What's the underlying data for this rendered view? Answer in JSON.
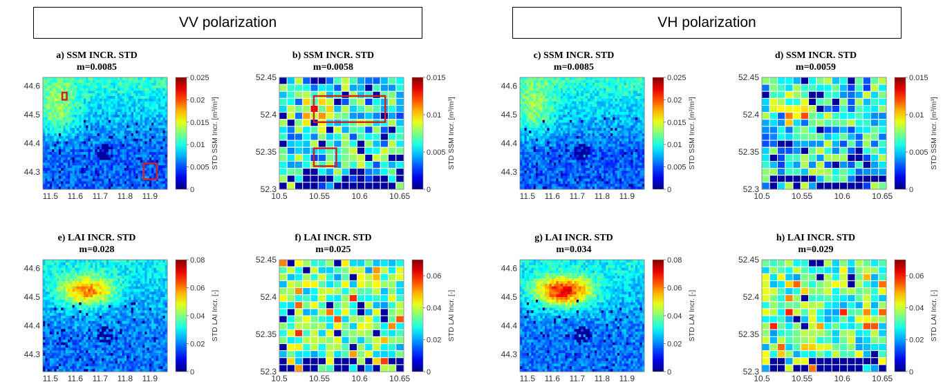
{
  "headers": {
    "vv": "VV polarization",
    "vh": "VH polarization"
  },
  "chart_data": [
    {
      "id": "a",
      "type": "heatmap",
      "title": "a) SSM INCR. STD",
      "subtitle": "m=0.0085",
      "x_ticks": [
        "11.5",
        "11.6",
        "11.7",
        "11.8",
        "11.9"
      ],
      "y_ticks": [
        "44.6",
        "44.5",
        "44.4",
        "44.3"
      ],
      "xlim": [
        11.47,
        11.97
      ],
      "ylim": [
        44.24,
        44.63
      ],
      "grid_cols": 55,
      "grid_rows": 42,
      "pattern": "ssm_it",
      "colorbar": {
        "min": 0,
        "max": 0.025,
        "ticks": [
          "0.025",
          "0.02",
          "0.015",
          "0.01",
          "0.005",
          "0"
        ],
        "label": "STD SSM Incr. [m³/m³]"
      },
      "highlights": [
        {
          "x1": 11.548,
          "x2": 11.566,
          "y1": 44.552,
          "y2": 44.577
        },
        {
          "x1": 11.875,
          "x2": 11.928,
          "y1": 44.275,
          "y2": 44.33
        }
      ],
      "mean": 0.0085
    },
    {
      "id": "b",
      "type": "heatmap",
      "title": "b) SSM INCR. STD",
      "subtitle": "m=0.0058",
      "x_ticks": [
        "10.5",
        "10.55",
        "10.6",
        "10.65"
      ],
      "y_ticks": [
        "52.45",
        "52.4",
        "52.35",
        "52.3"
      ],
      "xlim": [
        10.5,
        10.655
      ],
      "ylim": [
        52.3,
        52.45
      ],
      "grid_cols": 16,
      "grid_rows": 16,
      "pattern": "ssm_de",
      "colorbar": {
        "min": 0,
        "max": 0.015,
        "ticks": [
          "0.015",
          "0.01",
          "0.005",
          "0"
        ],
        "label": "STD SSM Incr. [m³/m³]"
      },
      "highlights": [
        {
          "x1": 10.543,
          "x2": 10.632,
          "y1": 52.39,
          "y2": 52.425
        },
        {
          "x1": 10.543,
          "x2": 10.571,
          "y1": 52.331,
          "y2": 52.355
        }
      ],
      "mean": 0.0058
    },
    {
      "id": "c",
      "type": "heatmap",
      "title": "c) SSM INCR. STD",
      "subtitle": "m=0.0085",
      "x_ticks": [
        "11.5",
        "11.6",
        "11.7",
        "11.8",
        "11.9"
      ],
      "y_ticks": [
        "44.6",
        "44.5",
        "44.4",
        "44.3"
      ],
      "xlim": [
        11.47,
        11.97
      ],
      "ylim": [
        44.24,
        44.63
      ],
      "grid_cols": 55,
      "grid_rows": 42,
      "pattern": "ssm_it",
      "colorbar": {
        "min": 0,
        "max": 0.025,
        "ticks": [
          "0.025",
          "0.02",
          "0.015",
          "0.01",
          "0.005",
          "0"
        ],
        "label": "STD SSM Incr. [m³/m³]"
      },
      "highlights": [],
      "mean": 0.0085
    },
    {
      "id": "d",
      "type": "heatmap",
      "title": "d) SSM INCR. STD",
      "subtitle": "m=0.0059",
      "x_ticks": [
        "10.5",
        "10.55",
        "10.6",
        "10.65"
      ],
      "y_ticks": [
        "52.45",
        "52.4",
        "52.35",
        "52.3"
      ],
      "xlim": [
        10.5,
        10.655
      ],
      "ylim": [
        52.3,
        52.45
      ],
      "grid_cols": 16,
      "grid_rows": 16,
      "pattern": "ssm_de",
      "colorbar": {
        "min": 0,
        "max": 0.015,
        "ticks": [
          "0.015",
          "0.01",
          "0.005",
          "0"
        ],
        "label": "STD SSM Incr. [m³/m³]"
      },
      "highlights": [],
      "mean": 0.0059
    },
    {
      "id": "e",
      "type": "heatmap",
      "title": "e) LAI INCR. STD",
      "subtitle": "m=0.028",
      "x_ticks": [
        "11.5",
        "11.6",
        "11.7",
        "11.8",
        "11.9"
      ],
      "y_ticks": [
        "44.6",
        "44.5",
        "44.4",
        "44.3"
      ],
      "xlim": [
        11.47,
        11.97
      ],
      "ylim": [
        44.24,
        44.63
      ],
      "grid_cols": 55,
      "grid_rows": 42,
      "pattern": "lai_it",
      "colorbar": {
        "min": 0,
        "max": 0.08,
        "ticks": [
          "0.08",
          "0.06",
          "0.04",
          "0.02",
          "0"
        ],
        "label": "STD LAI Incr. [-]"
      },
      "highlights": [],
      "mean": 0.028
    },
    {
      "id": "f",
      "type": "heatmap",
      "title": "f) LAI INCR. STD",
      "subtitle": "m=0.025",
      "x_ticks": [
        "10.5",
        "10.55",
        "10.6",
        "10.65"
      ],
      "y_ticks": [
        "52.45",
        "52.4",
        "52.35",
        "52.3"
      ],
      "xlim": [
        10.5,
        10.655
      ],
      "ylim": [
        52.3,
        52.45
      ],
      "grid_cols": 16,
      "grid_rows": 16,
      "pattern": "lai_de",
      "colorbar": {
        "min": 0,
        "max": 0.07,
        "ticks": [
          "0.06",
          "0.04",
          "0.02",
          "0"
        ],
        "label": "STD LAI Incr. [-]"
      },
      "highlights": [],
      "mean": 0.025
    },
    {
      "id": "g",
      "type": "heatmap",
      "title": "g) LAI INCR. STD",
      "subtitle": "m=0.034",
      "x_ticks": [
        "11.5",
        "11.6",
        "11.7",
        "11.8",
        "11.9"
      ],
      "y_ticks": [
        "44.6",
        "44.5",
        "44.4",
        "44.3"
      ],
      "xlim": [
        11.47,
        11.97
      ],
      "ylim": [
        44.24,
        44.63
      ],
      "grid_cols": 55,
      "grid_rows": 42,
      "pattern": "lai_it_strong",
      "colorbar": {
        "min": 0,
        "max": 0.08,
        "ticks": [
          "0.08",
          "0.06",
          "0.04",
          "0.02",
          "0"
        ],
        "label": "STD LAI Incr. [-]"
      },
      "highlights": [],
      "mean": 0.034
    },
    {
      "id": "h",
      "type": "heatmap",
      "title": "h) LAI INCR. STD",
      "subtitle": "m=0.029",
      "x_ticks": [
        "10.5",
        "10.55",
        "10.6",
        "10.65"
      ],
      "y_ticks": [
        "52.45",
        "52.4",
        "52.35",
        "52.3"
      ],
      "xlim": [
        10.5,
        10.655
      ],
      "ylim": [
        52.3,
        52.45
      ],
      "grid_cols": 16,
      "grid_rows": 16,
      "pattern": "lai_de",
      "colorbar": {
        "min": 0,
        "max": 0.07,
        "ticks": [
          "0.06",
          "0.04",
          "0.02",
          "0"
        ],
        "label": "STD LAI Incr. [-]"
      },
      "highlights": [],
      "mean": 0.029
    }
  ]
}
